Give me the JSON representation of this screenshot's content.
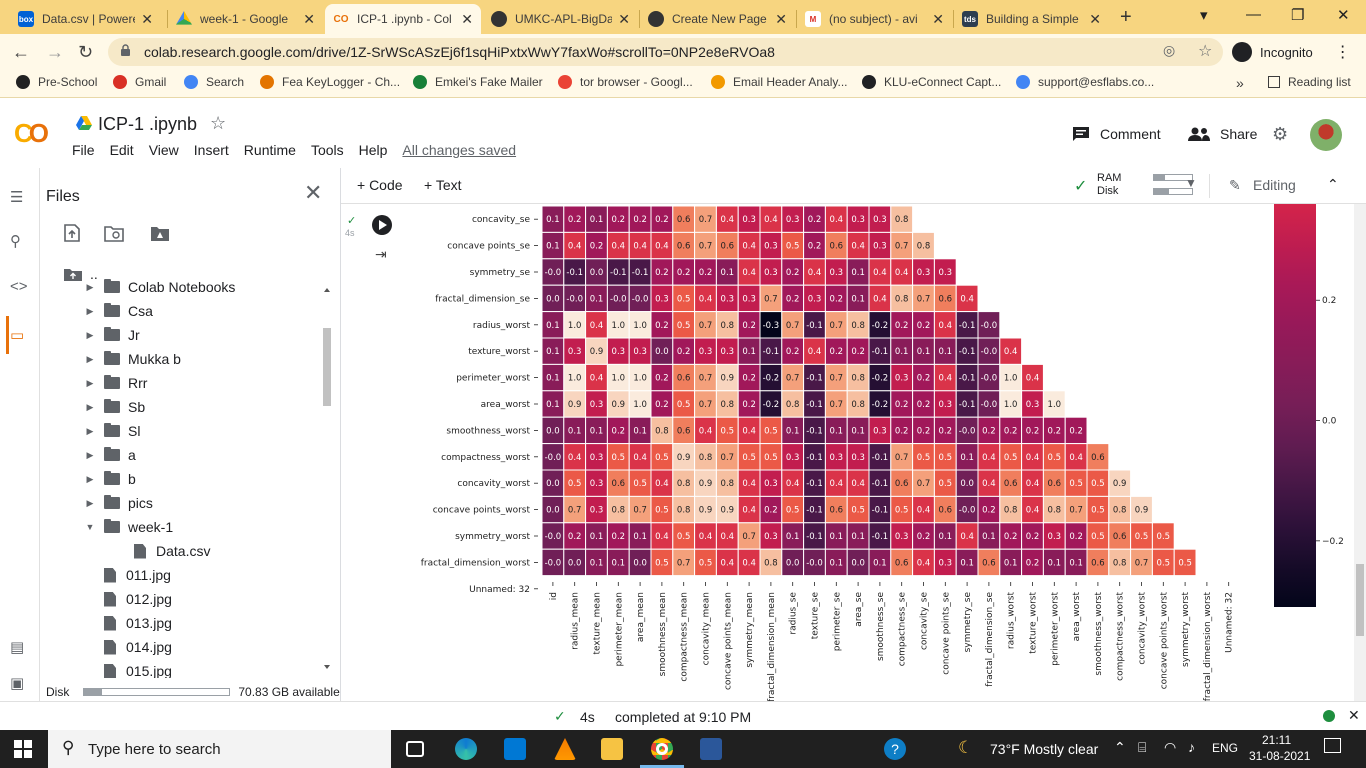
{
  "browser": {
    "tabs": [
      {
        "title": "Data.csv | Powere",
        "fav_color": "#0061d5",
        "fav_text": "box"
      },
      {
        "title": "week-1 - Google",
        "fav_color": "#ffffff",
        "fav_text": ""
      },
      {
        "title": "ICP-1 .ipynb - Col",
        "fav_color": "#f9ab00",
        "fav_text": "CO"
      },
      {
        "title": "UMKC-APL-BigDa",
        "fav_color": "#333333",
        "fav_text": ""
      },
      {
        "title": "Create New Page",
        "fav_color": "#333333",
        "fav_text": ""
      },
      {
        "title": "(no subject) - avi",
        "fav_color": "#ffffff",
        "fav_text": "M"
      },
      {
        "title": "Building a Simple",
        "fav_color": "#2d3e50",
        "fav_text": "tds"
      }
    ],
    "new_tab": "+",
    "url": "colab.research.google.com/drive/1Z-SrWScASzEj6f1sqHiPxtxWwY7faxWo#scrollTo=0NP2e8eRVOa8",
    "incognito_label": "Incognito",
    "bookmarks": [
      {
        "label": "Pre-School",
        "color": "#222222"
      },
      {
        "label": "Gmail",
        "color": "#d93025"
      },
      {
        "label": "Search",
        "color": "#4285f4"
      },
      {
        "label": "Fea KeyLogger - Ch...",
        "color": "#e37400"
      },
      {
        "label": "Emkei's Fake Mailer",
        "color": "#188038"
      },
      {
        "label": "tor browser - Googl...",
        "color": "#ea4335"
      },
      {
        "label": "Email Header Analy...",
        "color": "#f29900"
      },
      {
        "label": "KLU-eConnect Capt...",
        "color": "#202124"
      },
      {
        "label": "support@esflabs.co...",
        "color": "#4285f4"
      }
    ],
    "more_bookmarks": "»",
    "reading_list": "Reading list"
  },
  "colab": {
    "notebook_title": "ICP-1 .ipynb",
    "menu": [
      "File",
      "Edit",
      "View",
      "Insert",
      "Runtime",
      "Tools",
      "Help"
    ],
    "saved_status": "All changes saved",
    "comment_label": "Comment",
    "share_label": "Share",
    "toolbar": {
      "code": "+ Code",
      "text": "+ Text",
      "ram": "RAM",
      "disk": "Disk",
      "editing": "Editing",
      "ram_fill": 0.3,
      "disk_fill": 0.4
    }
  },
  "files": {
    "title": "Files",
    "parent": "..",
    "items": [
      {
        "name": "Colab Notebooks",
        "type": "folder",
        "depth": 1,
        "expanded": false
      },
      {
        "name": "Csa",
        "type": "folder",
        "depth": 1,
        "expanded": false
      },
      {
        "name": "Jr",
        "type": "folder",
        "depth": 1,
        "expanded": false
      },
      {
        "name": "Mukka b",
        "type": "folder",
        "depth": 1,
        "expanded": false
      },
      {
        "name": "Rrr",
        "type": "folder",
        "depth": 1,
        "expanded": false
      },
      {
        "name": "Sb",
        "type": "folder",
        "depth": 1,
        "expanded": false
      },
      {
        "name": "Sl",
        "type": "folder",
        "depth": 1,
        "expanded": false
      },
      {
        "name": "a",
        "type": "folder",
        "depth": 1,
        "expanded": false
      },
      {
        "name": "b",
        "type": "folder",
        "depth": 1,
        "expanded": false
      },
      {
        "name": "pics",
        "type": "folder",
        "depth": 1,
        "expanded": false
      },
      {
        "name": "week-1",
        "type": "folder",
        "depth": 1,
        "expanded": true
      },
      {
        "name": "Data.csv",
        "type": "file",
        "depth": 2
      },
      {
        "name": "011.jpg",
        "type": "file",
        "depth": 1
      },
      {
        "name": "012.jpg",
        "type": "file",
        "depth": 1
      },
      {
        "name": "013.jpg",
        "type": "file",
        "depth": 1
      },
      {
        "name": "014.jpg",
        "type": "file",
        "depth": 1
      },
      {
        "name": "015.jpg",
        "type": "file",
        "depth": 1
      }
    ],
    "disk_label": "Disk",
    "disk_available": "70.83 GB available",
    "disk_used_fraction": 0.12
  },
  "cell": {
    "exec_time": "4s",
    "check": "✓"
  },
  "chart_data": {
    "type": "heatmap",
    "row_labels": [
      "concavity_se",
      "concave points_se",
      "symmetry_se",
      "fractal_dimension_se",
      "radius_worst",
      "texture_worst",
      "perimeter_worst",
      "area_worst",
      "smoothness_worst",
      "compactness_worst",
      "concavity_worst",
      "concave points_worst",
      "symmetry_worst",
      "fractal_dimension_worst",
      "Unnamed: 32"
    ],
    "col_labels": [
      "id",
      "radius_mean",
      "texture_mean",
      "perimeter_mean",
      "area_mean",
      "smoothness_mean",
      "compactness_mean",
      "concavity_mean",
      "concave points_mean",
      "symmetry_mean",
      "fractal_dimension_mean",
      "radius_se",
      "texture_se",
      "perimeter_se",
      "area_se",
      "smoothness_se",
      "compactness_se",
      "concavity_se",
      "concave points_se",
      "symmetry_se",
      "fractal_dimension_se",
      "radius_worst",
      "texture_worst",
      "perimeter_worst",
      "area_worst",
      "smoothness_worst",
      "compactness_worst",
      "concavity_worst",
      "concave points_worst",
      "symmetry_worst",
      "fractal_dimension_worst",
      "Unnamed: 32"
    ],
    "values": [
      [
        0.1,
        0.2,
        0.1,
        0.2,
        0.2,
        0.2,
        0.6,
        0.7,
        0.4,
        0.3,
        0.4,
        0.3,
        0.2,
        0.4,
        0.3,
        0.3,
        0.8
      ],
      [
        0.1,
        0.4,
        0.2,
        0.4,
        0.4,
        0.4,
        0.6,
        0.7,
        0.6,
        0.4,
        0.3,
        0.5,
        0.2,
        0.6,
        0.4,
        0.3,
        0.7,
        0.8
      ],
      [
        -0.0,
        -0.1,
        0.0,
        -0.1,
        -0.1,
        0.2,
        0.2,
        0.2,
        0.1,
        0.4,
        0.3,
        0.2,
        0.4,
        0.3,
        0.1,
        0.4,
        0.4,
        0.3,
        0.3
      ],
      [
        0.0,
        -0.0,
        0.1,
        -0.0,
        -0.0,
        0.3,
        0.5,
        0.4,
        0.3,
        0.3,
        0.7,
        0.2,
        0.3,
        0.2,
        0.1,
        0.4,
        0.8,
        0.7,
        0.6,
        0.4
      ],
      [
        0.1,
        1.0,
        0.4,
        1.0,
        1.0,
        0.2,
        0.5,
        0.7,
        0.8,
        0.2,
        -0.3,
        0.7,
        -0.1,
        0.7,
        0.8,
        -0.2,
        0.2,
        0.2,
        0.4,
        -0.1,
        -0.0
      ],
      [
        0.1,
        0.3,
        0.9,
        0.3,
        0.3,
        0.0,
        0.2,
        0.3,
        0.3,
        0.1,
        -0.1,
        0.2,
        0.4,
        0.2,
        0.2,
        -0.1,
        0.1,
        0.1,
        0.1,
        -0.1,
        -0.0,
        0.4
      ],
      [
        0.1,
        1.0,
        0.4,
        1.0,
        1.0,
        0.2,
        0.6,
        0.7,
        0.9,
        0.2,
        -0.2,
        0.7,
        -0.1,
        0.7,
        0.8,
        -0.2,
        0.3,
        0.2,
        0.4,
        -0.1,
        -0.0,
        1.0,
        0.4
      ],
      [
        0.1,
        0.9,
        0.3,
        0.9,
        1.0,
        0.2,
        0.5,
        0.7,
        0.8,
        0.2,
        -0.2,
        0.8,
        -0.1,
        0.7,
        0.8,
        -0.2,
        0.2,
        0.2,
        0.3,
        -0.1,
        -0.0,
        1.0,
        0.3,
        1.0
      ],
      [
        0.0,
        0.1,
        0.1,
        0.2,
        0.1,
        0.8,
        0.6,
        0.4,
        0.5,
        0.4,
        0.5,
        0.1,
        -0.1,
        0.1,
        0.1,
        0.3,
        0.2,
        0.2,
        0.2,
        -0.0,
        0.2,
        0.2,
        0.2,
        0.2,
        0.2
      ],
      [
        -0.0,
        0.4,
        0.3,
        0.5,
        0.4,
        0.5,
        0.9,
        0.8,
        0.7,
        0.5,
        0.5,
        0.3,
        -0.1,
        0.3,
        0.3,
        -0.1,
        0.7,
        0.5,
        0.5,
        0.1,
        0.4,
        0.5,
        0.4,
        0.5,
        0.4,
        0.6
      ],
      [
        0.0,
        0.5,
        0.3,
        0.6,
        0.5,
        0.4,
        0.8,
        0.9,
        0.8,
        0.4,
        0.3,
        0.4,
        -0.1,
        0.4,
        0.4,
        -0.1,
        0.6,
        0.7,
        0.5,
        0.0,
        0.4,
        0.6,
        0.4,
        0.6,
        0.5,
        0.5,
        0.9
      ],
      [
        0.0,
        0.7,
        0.3,
        0.8,
        0.7,
        0.5,
        0.8,
        0.9,
        0.9,
        0.4,
        0.2,
        0.5,
        -0.1,
        0.6,
        0.5,
        -0.1,
        0.5,
        0.4,
        0.6,
        -0.0,
        0.2,
        0.8,
        0.4,
        0.8,
        0.7,
        0.5,
        0.8,
        0.9
      ],
      [
        -0.0,
        0.2,
        0.1,
        0.2,
        0.1,
        0.4,
        0.5,
        0.4,
        0.4,
        0.7,
        0.3,
        0.1,
        -0.1,
        0.1,
        0.1,
        -0.1,
        0.3,
        0.2,
        0.1,
        0.4,
        0.1,
        0.2,
        0.2,
        0.3,
        0.2,
        0.5,
        0.6,
        0.5,
        0.5
      ],
      [
        -0.0,
        0.0,
        0.1,
        0.1,
        0.0,
        0.5,
        0.7,
        0.5,
        0.4,
        0.4,
        0.8,
        0.0,
        -0.0,
        0.1,
        0.0,
        0.1,
        0.6,
        0.4,
        0.3,
        0.1,
        0.6,
        0.1,
        0.2,
        0.1,
        0.1,
        0.6,
        0.8,
        0.7,
        0.5,
        0.5
      ],
      []
    ],
    "colorbar_ticks": [
      0.2,
      0.0,
      -0.2
    ],
    "colorbar_tick_labels": [
      "0.2",
      "0.0",
      "−0.2"
    ],
    "colormap": "rocket",
    "annotated": true
  },
  "status": {
    "check": "✓",
    "time": "4s",
    "message": "completed at 9:10 PM",
    "close": "✕"
  },
  "taskbar": {
    "search_placeholder": "Type here to search",
    "weather": "73°F  Mostly clear",
    "lang": "ENG",
    "time": "21:11",
    "date": "31-08-2021"
  }
}
